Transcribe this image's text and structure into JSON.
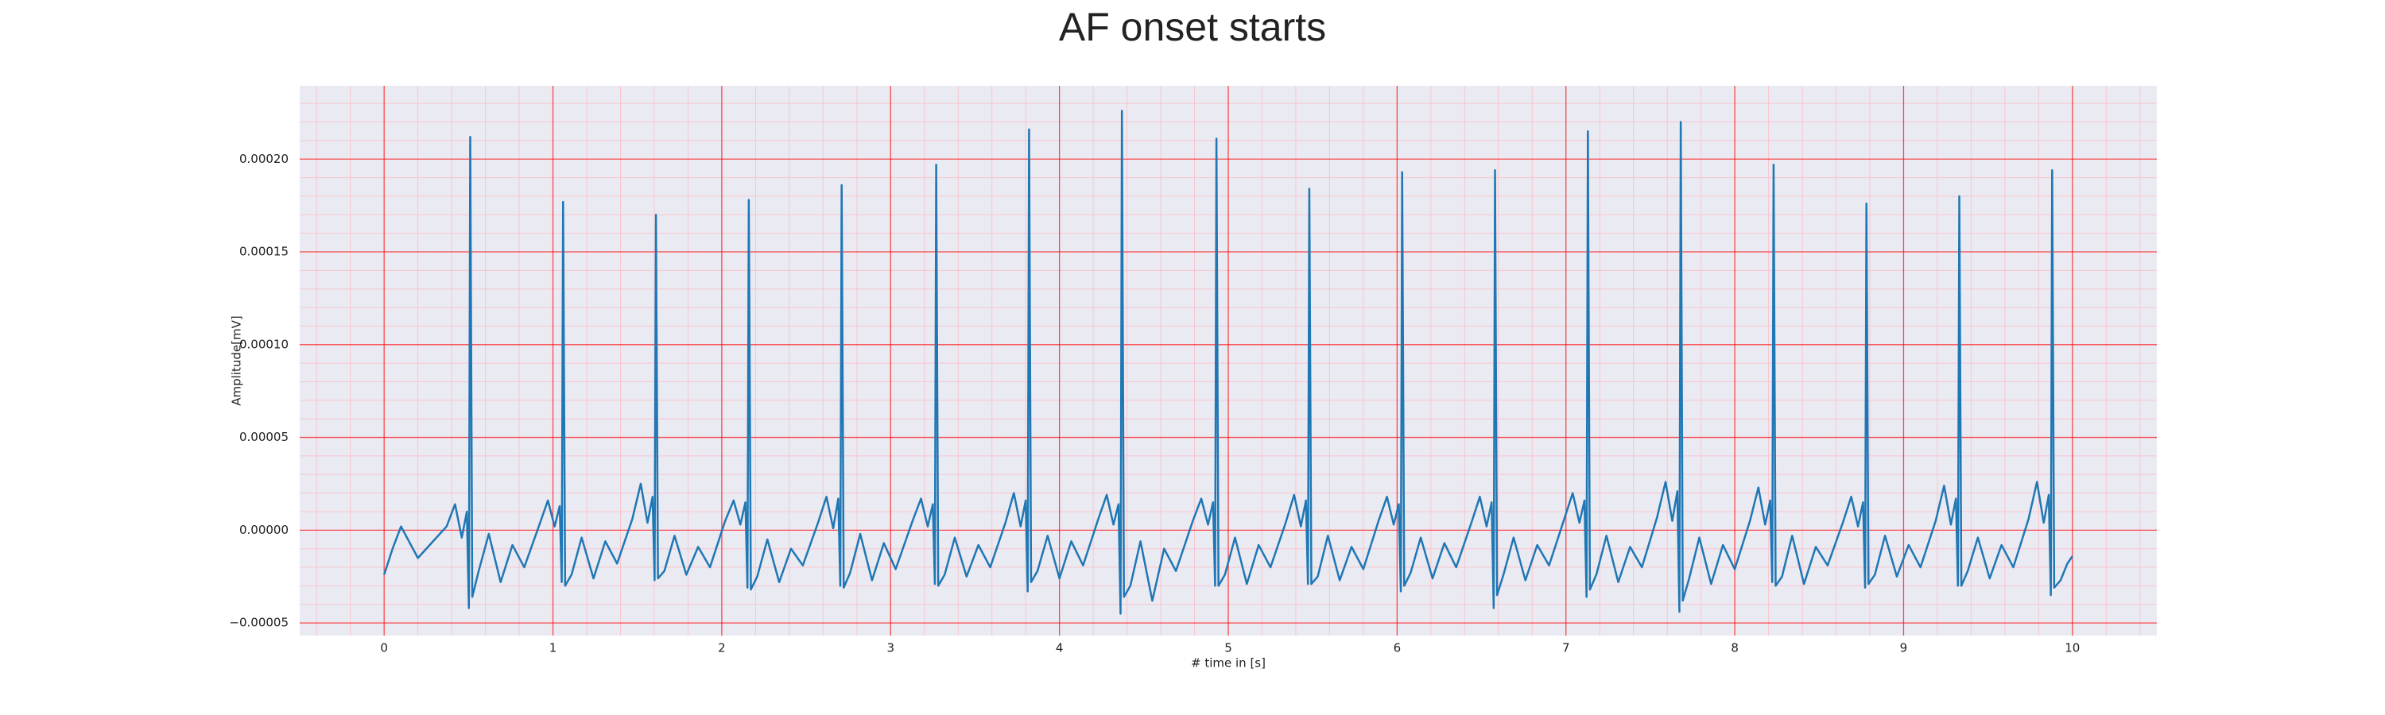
{
  "chart_data": {
    "type": "line",
    "title": "AF onset starts",
    "xlabel": "# time in [s]",
    "ylabel": "Amplitude[mV]",
    "color": "#1f77b4",
    "grid": true,
    "minor_grid": true,
    "xlim": [
      -0.5,
      10.5
    ],
    "ylim": [
      -5.68e-05,
      0.0002395
    ],
    "xticks": [
      0,
      1,
      2,
      3,
      4,
      5,
      6,
      7,
      8,
      9,
      10
    ],
    "yticks": [
      {
        "value": -5e-05,
        "label": "−0.00005"
      },
      {
        "value": 0,
        "label": "0.00000"
      },
      {
        "value": 5e-05,
        "label": "0.00005"
      },
      {
        "value": 0.0001,
        "label": "0.00010"
      },
      {
        "value": 0.00015,
        "label": "0.00015"
      },
      {
        "value": 0.0002,
        "label": "0.00020"
      }
    ],
    "x": [
      0,
      0.05,
      0.1,
      0.2,
      0.3,
      0.37,
      0.42,
      0.46,
      0.49,
      0.502,
      0.51,
      0.522,
      0.56,
      0.62,
      0.69,
      0.76,
      0.83,
      0.92,
      0.97,
      1.01,
      1.04,
      1.052,
      1.06,
      1.072,
      1.11,
      1.17,
      1.24,
      1.31,
      1.38,
      1.47,
      1.52,
      1.56,
      1.59,
      1.602,
      1.61,
      1.622,
      1.66,
      1.72,
      1.79,
      1.86,
      1.93,
      2.02,
      2.07,
      2.11,
      2.14,
      2.152,
      2.16,
      2.172,
      2.21,
      2.27,
      2.34,
      2.41,
      2.48,
      2.57,
      2.62,
      2.66,
      2.69,
      2.702,
      2.71,
      2.722,
      2.76,
      2.82,
      2.89,
      2.96,
      3.03,
      3.13,
      3.18,
      3.22,
      3.25,
      3.262,
      3.27,
      3.282,
      3.32,
      3.38,
      3.45,
      3.52,
      3.59,
      3.68,
      3.73,
      3.77,
      3.8,
      3.812,
      3.82,
      3.832,
      3.87,
      3.93,
      4.0,
      4.07,
      4.14,
      4.23,
      4.28,
      4.32,
      4.35,
      4.362,
      4.37,
      4.382,
      4.42,
      4.48,
      4.55,
      4.62,
      4.69,
      4.79,
      4.84,
      4.88,
      4.91,
      4.922,
      4.93,
      4.942,
      4.98,
      5.04,
      5.11,
      5.18,
      5.25,
      5.34,
      5.39,
      5.43,
      5.46,
      5.472,
      5.48,
      5.492,
      5.53,
      5.59,
      5.66,
      5.73,
      5.8,
      5.89,
      5.94,
      5.98,
      6.01,
      6.022,
      6.03,
      6.042,
      6.08,
      6.14,
      6.21,
      6.28,
      6.35,
      6.44,
      6.49,
      6.53,
      6.56,
      6.572,
      6.58,
      6.592,
      6.63,
      6.69,
      6.76,
      6.83,
      6.9,
      6.99,
      7.04,
      7.08,
      7.11,
      7.122,
      7.13,
      7.142,
      7.18,
      7.24,
      7.31,
      7.38,
      7.45,
      7.54,
      7.59,
      7.63,
      7.66,
      7.672,
      7.68,
      7.692,
      7.73,
      7.79,
      7.86,
      7.93,
      8.0,
      8.09,
      8.14,
      8.18,
      8.21,
      8.222,
      8.23,
      8.242,
      8.28,
      8.34,
      8.41,
      8.48,
      8.55,
      8.64,
      8.69,
      8.73,
      8.76,
      8.772,
      8.78,
      8.792,
      8.83,
      8.89,
      8.96,
      9.03,
      9.1,
      9.19,
      9.24,
      9.28,
      9.31,
      9.322,
      9.33,
      9.342,
      9.38,
      9.44,
      9.51,
      9.58,
      9.65,
      9.74,
      9.79,
      9.83,
      9.86,
      9.872,
      9.88,
      9.892,
      9.93,
      9.97,
      10.0
    ],
    "values": [
      -2.4e-05,
      -1e-05,
      2e-06,
      -1.5e-05,
      -5e-06,
      2e-06,
      1.4e-05,
      -4e-06,
      1e-05,
      -4.2e-05,
      0.000212,
      -3.6e-05,
      -2.2e-05,
      -2e-06,
      -2.8e-05,
      -8e-06,
      -2e-05,
      3e-06,
      1.6e-05,
      2e-06,
      1.3e-05,
      -2.8e-05,
      0.000177,
      -3e-05,
      -2.4e-05,
      -4e-06,
      -2.6e-05,
      -6e-06,
      -1.8e-05,
      6e-06,
      2.5e-05,
      4e-06,
      1.8e-05,
      -2.7e-05,
      0.00017,
      -2.6e-05,
      -2.2e-05,
      -3e-06,
      -2.4e-05,
      -9e-06,
      -2e-05,
      5e-06,
      1.6e-05,
      3e-06,
      1.5e-05,
      -3.1e-05,
      0.000178,
      -3.2e-05,
      -2.5e-05,
      -5e-06,
      -2.8e-05,
      -1e-05,
      -1.9e-05,
      4e-06,
      1.8e-05,
      1e-06,
      1.7e-05,
      -3e-05,
      0.000186,
      -3.1e-05,
      -2.3e-05,
      -2e-06,
      -2.7e-05,
      -7e-06,
      -2.1e-05,
      5e-06,
      1.7e-05,
      2e-06,
      1.4e-05,
      -2.9e-05,
      0.000197,
      -3e-05,
      -2.4e-05,
      -4e-06,
      -2.5e-05,
      -8e-06,
      -2e-05,
      4e-06,
      2e-05,
      2e-06,
      1.6e-05,
      -3.3e-05,
      0.000216,
      -2.8e-05,
      -2.2e-05,
      -3e-06,
      -2.6e-05,
      -6e-06,
      -1.9e-05,
      6e-06,
      1.9e-05,
      3e-06,
      1.4e-05,
      -4.5e-05,
      0.000226,
      -3.6e-05,
      -3e-05,
      -6e-06,
      -3.8e-05,
      -1e-05,
      -2.2e-05,
      5e-06,
      1.7e-05,
      3e-06,
      1.5e-05,
      -3e-05,
      0.000211,
      -3e-05,
      -2.4e-05,
      -4e-06,
      -2.9e-05,
      -8e-06,
      -2e-05,
      4e-06,
      1.9e-05,
      2e-06,
      1.6e-05,
      -2.9e-05,
      0.000184,
      -2.9e-05,
      -2.5e-05,
      -3e-06,
      -2.7e-05,
      -9e-06,
      -2.1e-05,
      5e-06,
      1.8e-05,
      3e-06,
      1.4e-05,
      -3.3e-05,
      0.000193,
      -3e-05,
      -2.3e-05,
      -4e-06,
      -2.6e-05,
      -7e-06,
      -2e-05,
      4e-06,
      1.8e-05,
      2e-06,
      1.5e-05,
      -4.2e-05,
      0.000194,
      -3.5e-05,
      -2.4e-05,
      -4e-06,
      -2.7e-05,
      -8e-06,
      -1.9e-05,
      6e-06,
      2e-05,
      4e-06,
      1.6e-05,
      -3.6e-05,
      0.000215,
      -3.2e-05,
      -2.4e-05,
      -3e-06,
      -2.8e-05,
      -9e-06,
      -2e-05,
      7e-06,
      2.6e-05,
      5e-06,
      2.1e-05,
      -4.4e-05,
      0.00022,
      -3.8e-05,
      -2.6e-05,
      -4e-06,
      -2.9e-05,
      -8e-06,
      -2.1e-05,
      5e-06,
      2.3e-05,
      3e-06,
      1.6e-05,
      -2.8e-05,
      0.000197,
      -3e-05,
      -2.5e-05,
      -3e-06,
      -2.9e-05,
      -9e-06,
      -1.9e-05,
      4e-06,
      1.8e-05,
      2e-06,
      1.5e-05,
      -3.1e-05,
      0.000176,
      -2.9e-05,
      -2.4e-05,
      -3e-06,
      -2.5e-05,
      -8e-06,
      -2e-05,
      5e-06,
      2.4e-05,
      3e-06,
      1.7e-05,
      -3e-05,
      0.00018,
      -3e-05,
      -2.2e-05,
      -4e-06,
      -2.6e-05,
      -8e-06,
      -2e-05,
      6e-06,
      2.6e-05,
      4e-06,
      1.9e-05,
      -3.5e-05,
      0.000194,
      -3.1e-05,
      -2.7e-05,
      -1.8e-05,
      -1.4e-05
    ]
  }
}
